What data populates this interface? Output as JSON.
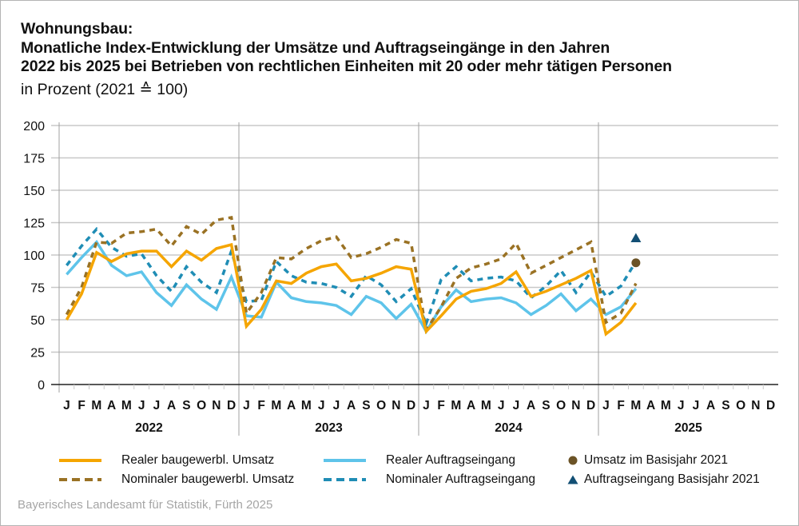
{
  "header": {
    "title_lines": [
      "Wohnungsbau:",
      "Monatliche Index-Entwicklung der Umsätze und Auftragseingänge in den Jahren",
      "2022 bis 2025 bei Betrieben von rechtlichen Einheiten mit 20 oder mehr tätigen Personen"
    ],
    "subtitle": "in Prozent (2021 ≙ 100)"
  },
  "source": "Bayerisches Landesamt für Statistik, Fürth 2025",
  "colors": {
    "real_umsatz": "#f5a500",
    "nominal_umsatz": "#9a7224",
    "real_auftrag": "#5ec4ea",
    "nominal_auftrag": "#1f8db5",
    "marker_umsatz": "#6b5326",
    "marker_auftrag": "#124f74",
    "grid": "#c8c8c8",
    "year_separator": "#a0a0a0"
  },
  "chart_data": {
    "type": "line",
    "title": "Wohnungsbau: Monatliche Index-Entwicklung der Umsätze und Auftragseingänge in den Jahren 2022 bis 2025 bei Betrieben von rechtlichen Einheiten mit 20 oder mehr tätigen Personen",
    "subtitle": "in Prozent (2021 ≙ 100)",
    "xlabel": "",
    "ylabel": "",
    "ylim": [
      0,
      200
    ],
    "yticks": [
      0,
      25,
      50,
      75,
      100,
      125,
      150,
      175,
      200
    ],
    "grid": true,
    "month_labels": [
      "J",
      "F",
      "M",
      "A",
      "M",
      "J",
      "J",
      "A",
      "S",
      "O",
      "N",
      "D"
    ],
    "years": [
      "2022",
      "2023",
      "2024",
      "2025"
    ],
    "legend_position": "bottom",
    "series": [
      {
        "name": "Realer baugewerbl. Umsatz",
        "key": "real_umsatz",
        "style": "solid",
        "values": [
          50,
          70,
          102,
          95,
          101,
          103,
          103,
          91,
          103,
          96,
          105,
          108,
          45,
          58,
          80,
          78,
          86,
          91,
          93,
          80,
          82,
          86,
          91,
          89,
          41,
          53,
          66,
          72,
          74,
          78,
          87,
          68,
          72,
          77,
          82,
          88,
          39,
          48,
          63
        ]
      },
      {
        "name": "Nominaler baugewerbl. Umsatz",
        "key": "nominal_umsatz",
        "style": "dashed",
        "values": [
          54,
          75,
          110,
          109,
          117,
          118,
          120,
          107,
          122,
          116,
          127,
          129,
          55,
          71,
          98,
          97,
          105,
          111,
          114,
          98,
          101,
          106,
          112,
          109,
          42,
          60,
          82,
          90,
          93,
          97,
          109,
          86,
          92,
          98,
          104,
          110,
          48,
          55,
          78
        ]
      },
      {
        "name": "Realer Auftragseingang",
        "key": "real_auftrag",
        "style": "solid",
        "values": [
          85,
          98,
          110,
          92,
          84,
          87,
          71,
          61,
          77,
          66,
          58,
          83,
          53,
          52,
          79,
          67,
          64,
          63,
          61,
          54,
          68,
          63,
          51,
          62,
          41,
          60,
          73,
          64,
          66,
          67,
          63,
          54,
          61,
          70,
          57,
          66,
          54,
          60,
          74
        ]
      },
      {
        "name": "Nominaler Auftragseingang",
        "key": "nominal_auftrag",
        "style": "dashed",
        "values": [
          92,
          107,
          120,
          106,
          99,
          101,
          84,
          72,
          91,
          79,
          71,
          103,
          64,
          65,
          95,
          84,
          79,
          78,
          75,
          68,
          84,
          77,
          64,
          74,
          47,
          81,
          91,
          80,
          82,
          83,
          80,
          67,
          76,
          88,
          71,
          87,
          68,
          76,
          95
        ]
      }
    ],
    "markers": [
      {
        "name": "Umsatz im Basisjahr 2021",
        "key": "marker_umsatz",
        "shape": "circle",
        "month_index": 38,
        "value": 94
      },
      {
        "name": "Auftragseingang Basisjahr 2021",
        "key": "marker_auftrag",
        "shape": "triangle",
        "month_index": 38,
        "value": 113
      }
    ]
  },
  "legend": {
    "items": [
      {
        "label": "Realer baugewerbl. Umsatz",
        "key": "real_umsatz",
        "kind": "solid"
      },
      {
        "label": "Nominaler baugewerbl. Umsatz",
        "key": "nominal_umsatz",
        "kind": "dashed"
      },
      {
        "label": "Realer Auftragseingang",
        "key": "real_auftrag",
        "kind": "solid"
      },
      {
        "label": "Nominaler Auftragseingang",
        "key": "nominal_auftrag",
        "kind": "dashed"
      },
      {
        "label": "Umsatz im Basisjahr 2021",
        "key": "marker_umsatz",
        "kind": "circle"
      },
      {
        "label": "Auftragseingang Basisjahr 2021",
        "key": "marker_auftrag",
        "kind": "triangle"
      }
    ]
  }
}
